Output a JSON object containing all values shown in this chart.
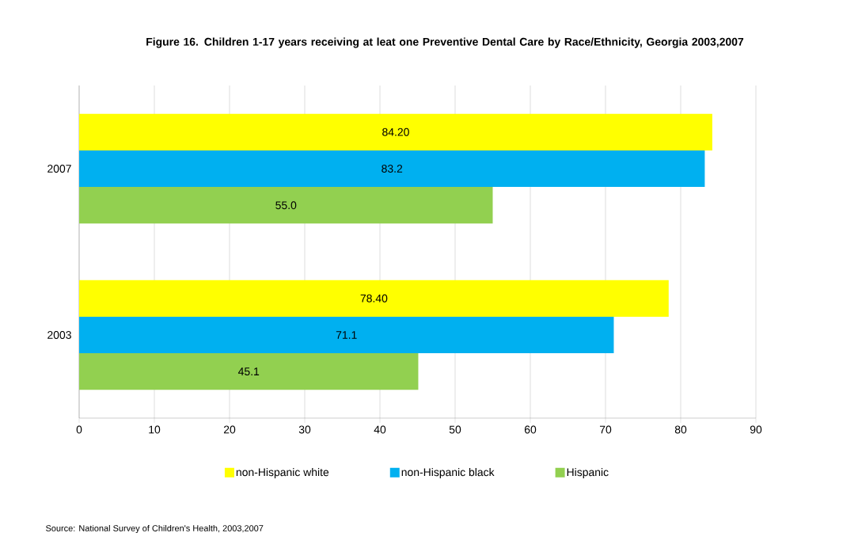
{
  "chart_data": {
    "type": "bar",
    "orientation": "horizontal",
    "title": "Figure 16. Children 1-17 years receiving at leat one Preventive Dental Care by Race/Ethnicity, Georgia 2003,2007",
    "categories": [
      "2007",
      "2003"
    ],
    "series": [
      {
        "name": "non-Hispanic white",
        "color": "#ffff00",
        "values": [
          84.2,
          78.4
        ],
        "value_labels": [
          "84.20",
          "78.40"
        ]
      },
      {
        "name": "non-Hispanic black",
        "color": "#00b0f0",
        "values": [
          83.2,
          71.1
        ],
        "value_labels": [
          "83.2",
          "71.1"
        ]
      },
      {
        "name": "Hispanic",
        "color": "#92d050",
        "values": [
          55.0,
          45.1
        ],
        "value_labels": [
          "55.0",
          "45.1"
        ]
      }
    ],
    "xlim": [
      0,
      90
    ],
    "xticks": [
      0,
      10,
      20,
      30,
      40,
      50,
      60,
      70,
      80,
      90
    ],
    "grid": "x",
    "legend": "bottom",
    "annotations": [
      "Source: National Survey of Children's Health, 2003,2007"
    ]
  }
}
